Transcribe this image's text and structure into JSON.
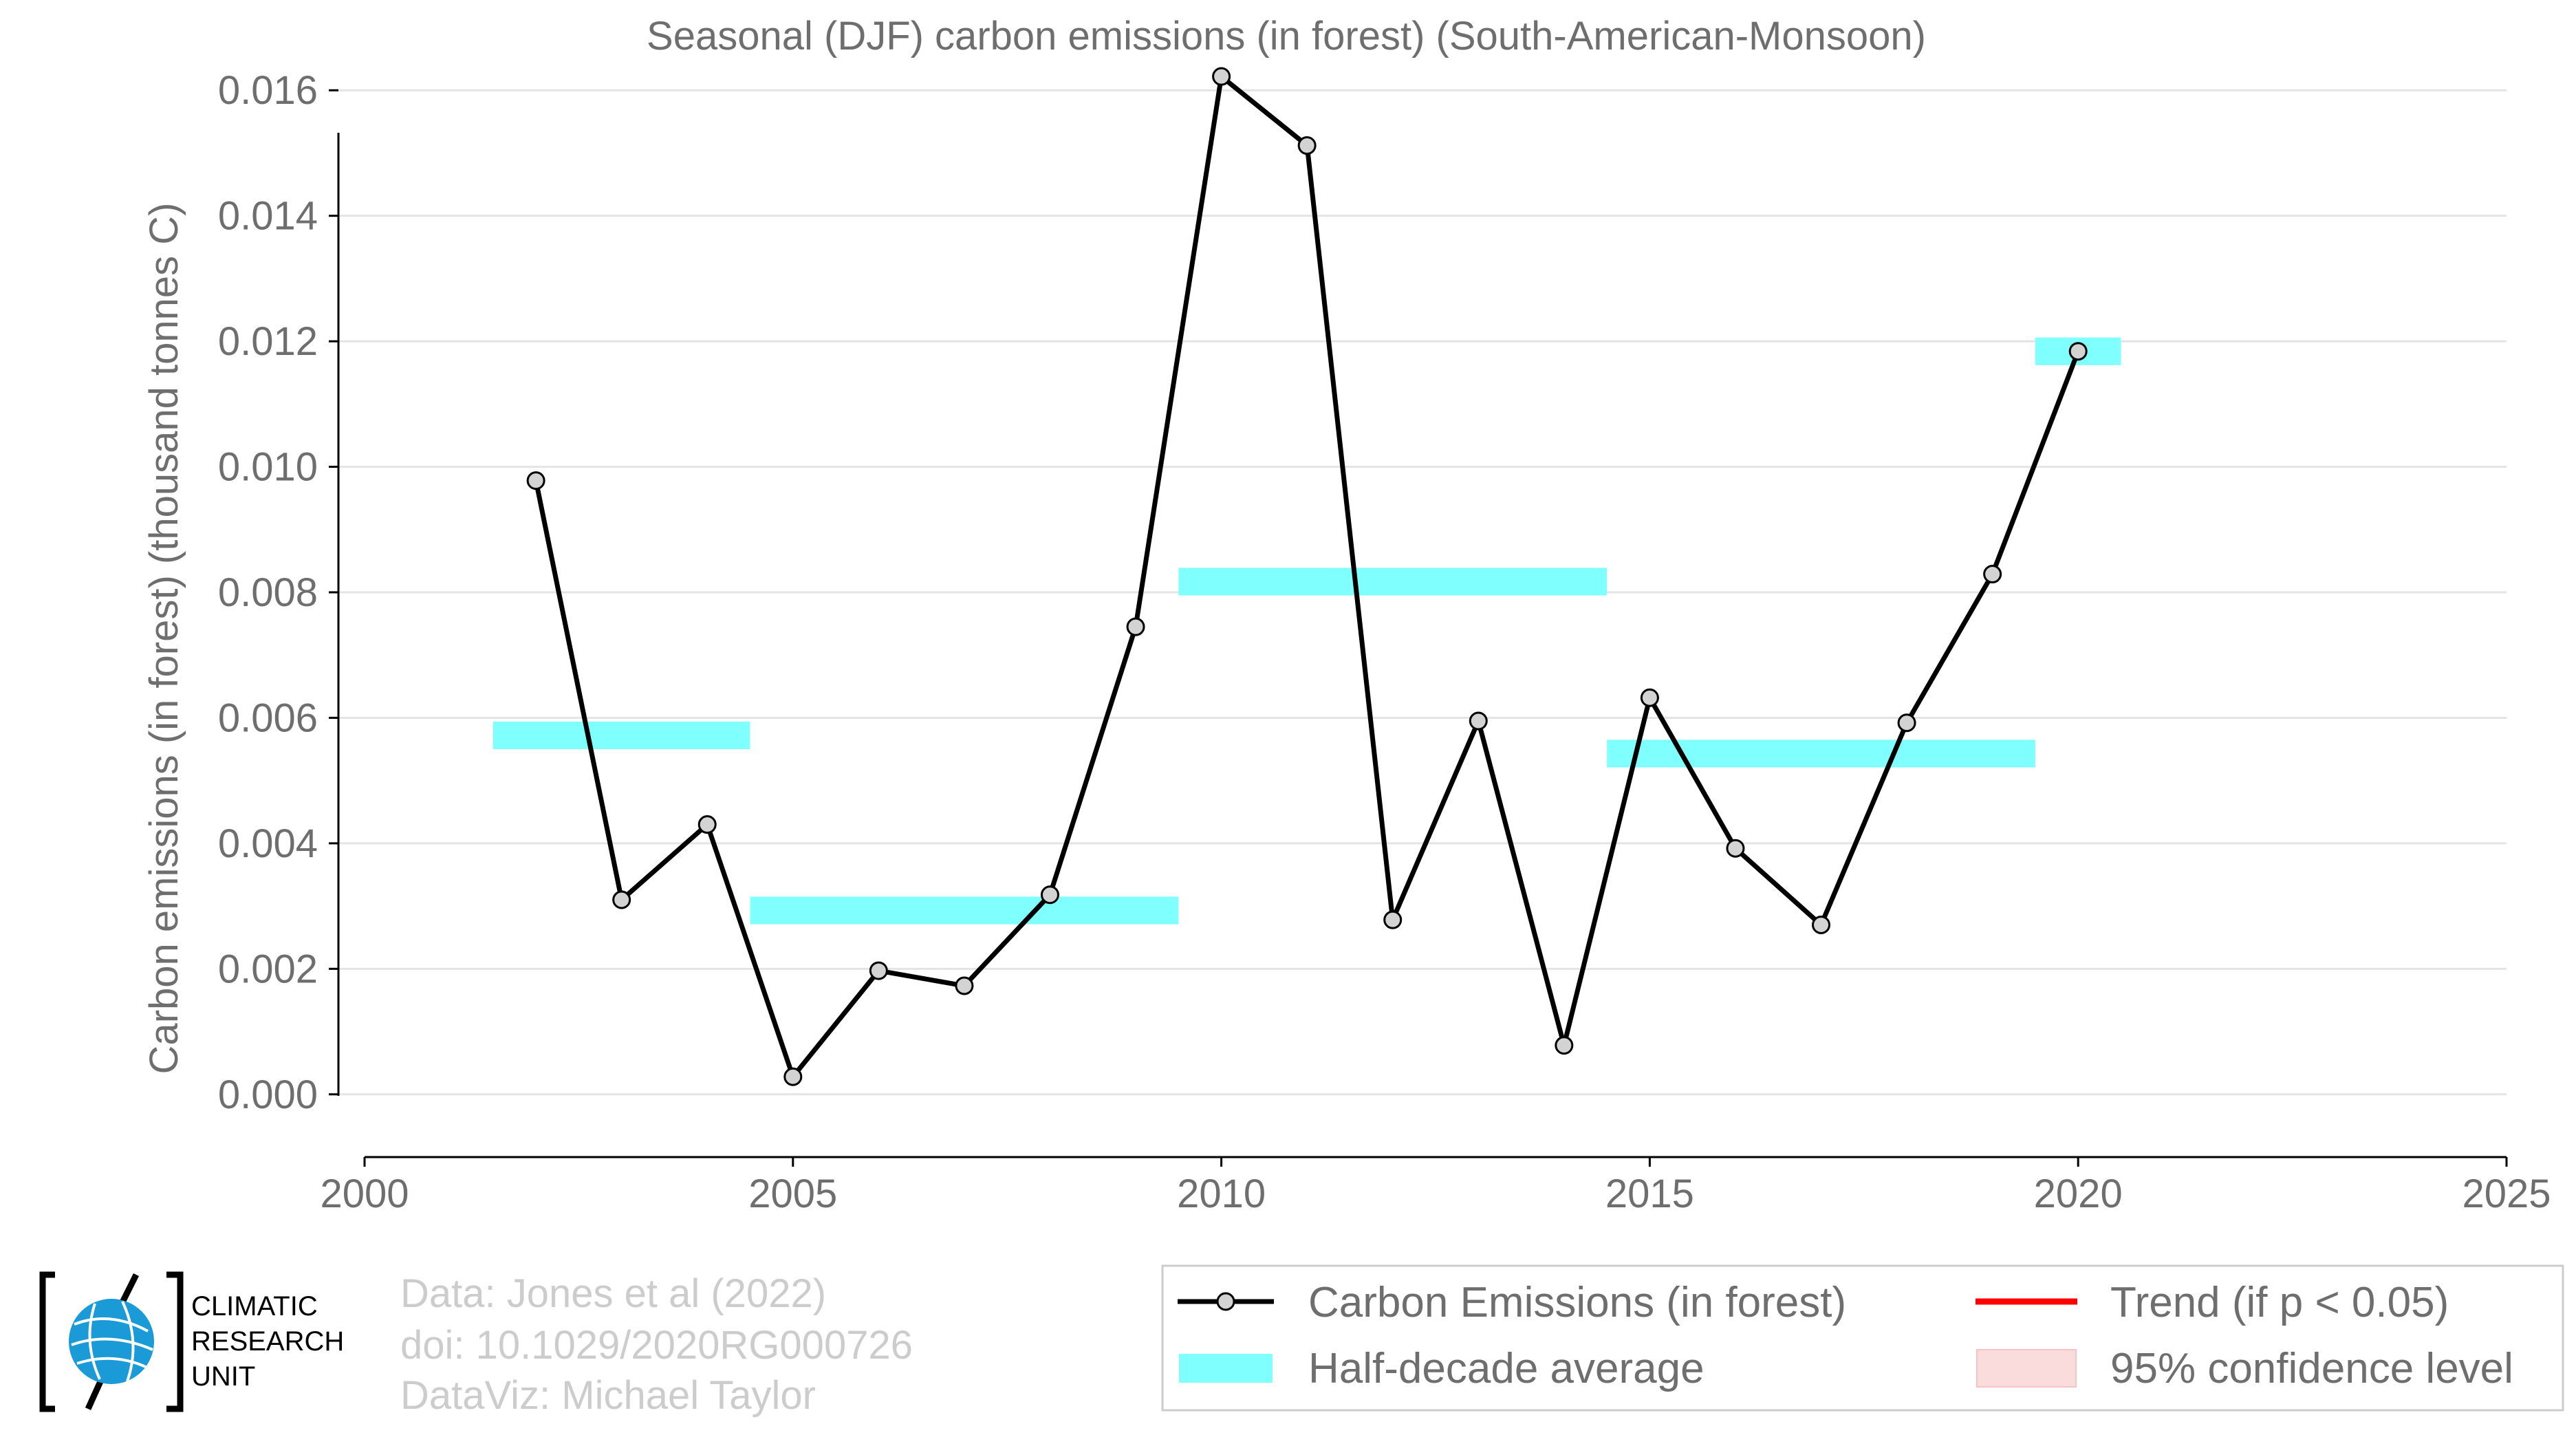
{
  "chart_data": {
    "type": "line",
    "title": "Seasonal (DJF) carbon emissions (in forest) (South-American-Monsoon)",
    "xlabel": "",
    "ylabel": "Carbon emissions (in forest) (thousand tonnes C)",
    "xlim": [
      2000,
      2025
    ],
    "ylim": [
      -0.001,
      0.0162
    ],
    "x_ticks": [
      "2000",
      "2005",
      "2010",
      "2015",
      "2020",
      "2025"
    ],
    "y_ticks": [
      "0.000",
      "0.002",
      "0.004",
      "0.006",
      "0.008",
      "0.010",
      "0.012",
      "0.014",
      "0.016"
    ],
    "grid": "horizontal",
    "series": [
      {
        "name": "Carbon Emissions (in forest)",
        "color": "#000000",
        "marker_fill": "#d3d3d3",
        "x": [
          2002,
          2003,
          2004,
          2005,
          2006,
          2007,
          2008,
          2009,
          2010,
          2011,
          2012,
          2013,
          2014,
          2015,
          2016,
          2017,
          2018,
          2019,
          2020
        ],
        "y": [
          0.00978,
          0.0031,
          0.0043,
          0.00028,
          0.00197,
          0.00173,
          0.00318,
          0.00745,
          0.01622,
          0.01512,
          0.00278,
          0.00595,
          0.00078,
          0.00632,
          0.00392,
          0.0027,
          0.00592,
          0.00829,
          0.01184
        ]
      }
    ],
    "half_decade_average": {
      "name": "Half-decade average",
      "color": "#80ffff",
      "segments": [
        {
          "x0": 2001.5,
          "x1": 2004.5,
          "y": 0.00572
        },
        {
          "x0": 2004.5,
          "x1": 2009.5,
          "y": 0.00293
        },
        {
          "x0": 2009.5,
          "x1": 2014.5,
          "y": 0.00817
        },
        {
          "x0": 2014.5,
          "x1": 2019.5,
          "y": 0.00543
        },
        {
          "x0": 2019.5,
          "x1": 2020.5,
          "y": 0.01184
        }
      ]
    },
    "legend": {
      "placement": "bottom-right",
      "entries": [
        {
          "label": "Carbon Emissions (in forest)",
          "kind": "line-marker",
          "color": "#000000"
        },
        {
          "label": "Trend (if p < 0.05)",
          "kind": "line",
          "color": "#ff0000"
        },
        {
          "label": "Half-decade average",
          "kind": "band",
          "color": "#80ffff"
        },
        {
          "label": "95% confidence level",
          "kind": "band",
          "color": "#fbdcdc"
        }
      ]
    },
    "credits": [
      "Data: Jones et al (2022)",
      "doi: 10.1029/2020RG000726",
      "DataViz: Michael Taylor"
    ],
    "logo": {
      "icon": "globe-icon",
      "lines": [
        "CLIMATIC",
        "RESEARCH",
        "UNIT"
      ],
      "globe_color": "#1a9ad6"
    }
  }
}
